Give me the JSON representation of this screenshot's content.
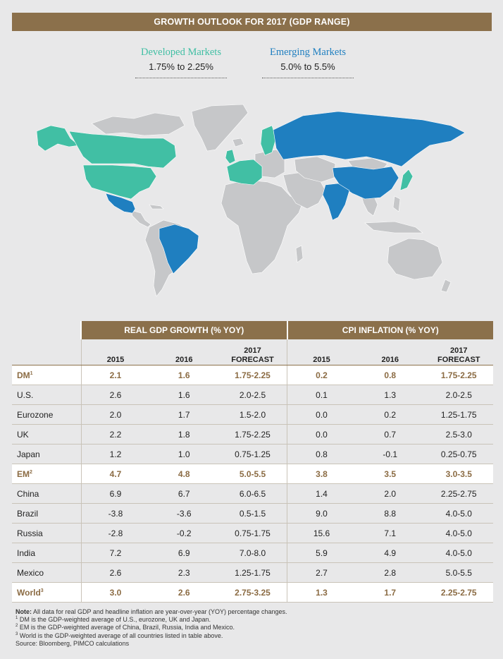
{
  "title": "GROWTH OUTLOOK FOR 2017 (GDP RANGE)",
  "legend": {
    "developed": {
      "name": "Developed Markets",
      "range": "1.75% to 2.25%",
      "color": "#41bfa4"
    },
    "emerging": {
      "name": "Emerging Markets",
      "range": "5.0% to 5.5%",
      "color": "#1f7fc0"
    }
  },
  "map": {
    "other_color": "#c6c7c9",
    "developed_regions": [
      "U.S.",
      "Canada",
      "Eurozone",
      "UK",
      "Japan",
      "Sweden",
      "Norway"
    ],
    "emerging_regions": [
      "China",
      "Brazil",
      "Russia",
      "India",
      "Mexico"
    ]
  },
  "chart_data": {
    "type": "table",
    "title": "GROWTH OUTLOOK FOR 2017 (GDP RANGE)",
    "groups": [
      "REAL GDP GROWTH (% YOY)",
      "CPI INFLATION (% YOY)"
    ],
    "columns": [
      {
        "line1": "",
        "line2": "2015"
      },
      {
        "line1": "",
        "line2": "2016"
      },
      {
        "line1": "2017",
        "line2": "FORECAST"
      },
      {
        "line1": "",
        "line2": "2015"
      },
      {
        "line1": "",
        "line2": "2016"
      },
      {
        "line1": "2017",
        "line2": "FORECAST"
      }
    ],
    "rows": [
      {
        "label": "DM",
        "note": "1",
        "aggregate": true,
        "values": [
          "2.1",
          "1.6",
          "1.75-2.25",
          "0.2",
          "0.8",
          "1.75-2.25"
        ]
      },
      {
        "label": "U.S.",
        "note": "",
        "aggregate": false,
        "values": [
          "2.6",
          "1.6",
          "2.0-2.5",
          "0.1",
          "1.3",
          "2.0-2.5"
        ]
      },
      {
        "label": "Eurozone",
        "note": "",
        "aggregate": false,
        "values": [
          "2.0",
          "1.7",
          "1.5-2.0",
          "0.0",
          "0.2",
          "1.25-1.75"
        ]
      },
      {
        "label": "UK",
        "note": "",
        "aggregate": false,
        "values": [
          "2.2",
          "1.8",
          "1.75-2.25",
          "0.0",
          "0.7",
          "2.5-3.0"
        ]
      },
      {
        "label": "Japan",
        "note": "",
        "aggregate": false,
        "values": [
          "1.2",
          "1.0",
          "0.75-1.25",
          "0.8",
          "-0.1",
          "0.25-0.75"
        ]
      },
      {
        "label": "EM",
        "note": "2",
        "aggregate": true,
        "values": [
          "4.7",
          "4.8",
          "5.0-5.5",
          "3.8",
          "3.5",
          "3.0-3.5"
        ]
      },
      {
        "label": "China",
        "note": "",
        "aggregate": false,
        "values": [
          "6.9",
          "6.7",
          "6.0-6.5",
          "1.4",
          "2.0",
          "2.25-2.75"
        ]
      },
      {
        "label": "Brazil",
        "note": "",
        "aggregate": false,
        "values": [
          "-3.8",
          "-3.6",
          "0.5-1.5",
          "9.0",
          "8.8",
          "4.0-5.0"
        ]
      },
      {
        "label": "Russia",
        "note": "",
        "aggregate": false,
        "values": [
          "-2.8",
          "-0.2",
          "0.75-1.75",
          "15.6",
          "7.1",
          "4.0-5.0"
        ]
      },
      {
        "label": "India",
        "note": "",
        "aggregate": false,
        "values": [
          "7.2",
          "6.9",
          "7.0-8.0",
          "5.9",
          "4.9",
          "4.0-5.0"
        ]
      },
      {
        "label": "Mexico",
        "note": "",
        "aggregate": false,
        "values": [
          "2.6",
          "2.3",
          "1.25-1.75",
          "2.7",
          "2.8",
          "5.0-5.5"
        ]
      },
      {
        "label": "World",
        "note": "3",
        "aggregate": true,
        "values": [
          "3.0",
          "2.6",
          "2.75-3.25",
          "1.3",
          "1.7",
          "2.25-2.75"
        ]
      }
    ]
  },
  "notes": {
    "main_label": "Note:",
    "main_text": "All data for real GDP and headline inflation are year-over-year (YOY) percentage changes.",
    "footnotes": [
      {
        "mark": "1",
        "text": "DM is the GDP-weighted average of U.S., eurozone, UK and Japan."
      },
      {
        "mark": "2",
        "text": "EM is the GDP-weighted average of China, Brazil, Russia, India and Mexico."
      },
      {
        "mark": "3",
        "text": "World is the GDP-weighted average of all countries listed in table above."
      }
    ],
    "source": "Source: Bloomberg, PIMCO calculations"
  }
}
